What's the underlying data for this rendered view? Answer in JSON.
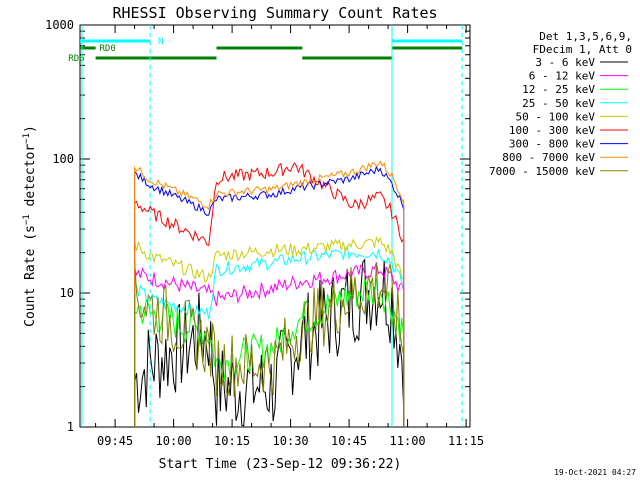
{
  "chart_data": {
    "type": "line",
    "title": "RHESSI Observing Summary Count Rates",
    "xlabel": "Start Time (23-Sep-12 09:36:22)",
    "ylabel": "Count Rate (s⁻¹ detector⁻¹)",
    "yscale": "log",
    "ylim": [
      1,
      1000
    ],
    "xlim_minutes_after_0936": [
      0,
      100
    ],
    "x_ticks": [
      "09:45",
      "10:00",
      "10:15",
      "10:30",
      "10:45",
      "11:00",
      "11:15"
    ],
    "y_ticks": [
      "1",
      "10",
      "100",
      "1000"
    ],
    "legend_header": [
      "Det 1,3,5,6,9,",
      "FDecim 1, Att 0"
    ],
    "series": [
      {
        "name": "3 - 6 keV",
        "color": "#000000",
        "y_approx": [
          2.2,
          3,
          5,
          2,
          2,
          4,
          9,
          12,
          9,
          3
        ]
      },
      {
        "name": "6 - 12 keV",
        "color": "#ff00ff",
        "y_approx": [
          14,
          13,
          10,
          9,
          11,
          12,
          14,
          15,
          13,
          10
        ]
      },
      {
        "name": "12 - 25 keV",
        "color": "#00ff00",
        "y_approx": [
          8,
          7,
          5,
          3,
          4,
          6,
          10,
          11,
          8,
          5
        ]
      },
      {
        "name": "25 - 50 keV",
        "color": "#00ffff",
        "y_approx": [
          11,
          9,
          7,
          15,
          17,
          18,
          20,
          20,
          17,
          11
        ]
      },
      {
        "name": "50 - 100 keV",
        "color": "#cccc00",
        "y_approx": [
          23,
          19,
          13,
          19,
          21,
          21,
          23,
          24,
          20,
          12
        ]
      },
      {
        "name": "100 - 300 keV",
        "color": "#ff0000",
        "y_approx": [
          48,
          40,
          24,
          72,
          80,
          90,
          45,
          52,
          40,
          25
        ]
      },
      {
        "name": "300 - 800 keV",
        "color": "#0000ff",
        "y_approx": [
          78,
          64,
          40,
          50,
          55,
          60,
          72,
          85,
          65,
          45
        ]
      },
      {
        "name": "800 - 7000 keV",
        "color": "#ff8c00",
        "y_approx": [
          88,
          70,
          45,
          55,
          60,
          65,
          80,
          95,
          75,
          50
        ]
      },
      {
        "name": "7000 - 15000 keV",
        "color": "#808000",
        "y_approx": [
          10,
          8,
          4,
          3,
          3,
          5,
          10,
          12,
          9,
          4
        ]
      }
    ],
    "flags": [
      {
        "label": "N",
        "color": "#00ffff"
      },
      {
        "label": "RD0",
        "color": "#008000"
      },
      {
        "label": "RD6",
        "color": "#008000"
      }
    ],
    "grid": false
  },
  "footer": {
    "timestamp": "19-Oct-2021 04:27"
  }
}
